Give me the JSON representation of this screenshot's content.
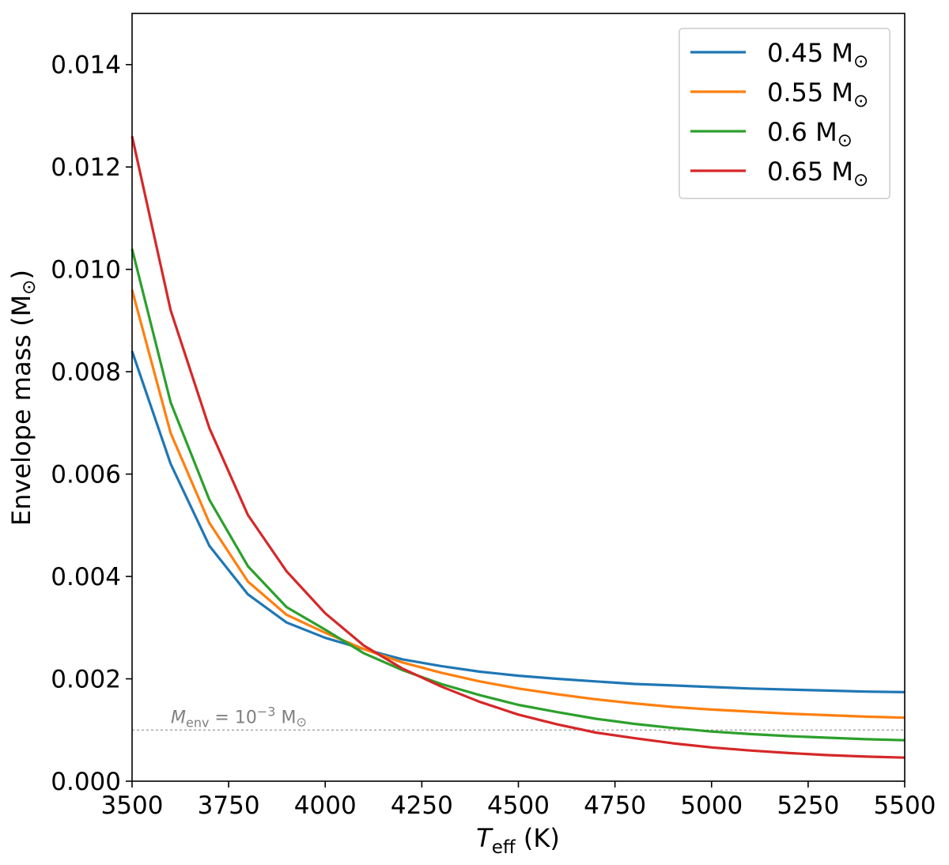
{
  "chart_data": {
    "type": "line",
    "xlabel": {
      "main": "T",
      "sub": "eff",
      "rest": " (K)"
    },
    "ylabel": {
      "main": "Envelope mass (M",
      "symbol": "⊙",
      "rest": ")"
    },
    "xlim": [
      3500,
      5500
    ],
    "ylim": [
      0.0,
      0.015
    ],
    "xticks": [
      3500,
      3750,
      4000,
      4250,
      4500,
      4750,
      5000,
      5250,
      5500
    ],
    "xtick_labels": [
      "3500",
      "3750",
      "4000",
      "4250",
      "4500",
      "4750",
      "5000",
      "5250",
      "5500"
    ],
    "yticks": [
      0.0,
      0.002,
      0.004,
      0.006,
      0.008,
      0.01,
      0.012,
      0.014
    ],
    "ytick_labels": [
      "0.000",
      "0.002",
      "0.004",
      "0.006",
      "0.008",
      "0.010",
      "0.012",
      "0.014"
    ],
    "grid": false,
    "legend_position": "top-right",
    "x": [
      3500,
      3600,
      3700,
      3800,
      3900,
      4000,
      4100,
      4200,
      4300,
      4400,
      4500,
      4600,
      4700,
      4800,
      4900,
      5000,
      5100,
      5200,
      5300,
      5400,
      5500
    ],
    "series": [
      {
        "name": "0.45 M",
        "name_symbol": "⊙",
        "color": "#1f77b4",
        "values": [
          0.0084,
          0.0062,
          0.0046,
          0.00365,
          0.0031,
          0.0028,
          0.00258,
          0.00238,
          0.00225,
          0.00214,
          0.00206,
          0.002,
          0.00195,
          0.0019,
          0.00187,
          0.00184,
          0.00181,
          0.00179,
          0.00177,
          0.00175,
          0.00174
        ]
      },
      {
        "name": "0.55 M",
        "name_symbol": "⊙",
        "color": "#ff7f0e",
        "values": [
          0.0096,
          0.0068,
          0.00505,
          0.0039,
          0.00325,
          0.0029,
          0.00258,
          0.00232,
          0.00212,
          0.00195,
          0.00181,
          0.0017,
          0.0016,
          0.00152,
          0.00145,
          0.0014,
          0.00136,
          0.00132,
          0.00129,
          0.00126,
          0.00124
        ]
      },
      {
        "name": "0.6 M",
        "name_symbol": "⊙",
        "color": "#2ca02c",
        "values": [
          0.0104,
          0.0074,
          0.0055,
          0.0042,
          0.0034,
          0.00296,
          0.0025,
          0.00217,
          0.0019,
          0.00168,
          0.00149,
          0.00135,
          0.00122,
          0.00112,
          0.00104,
          0.00097,
          0.00092,
          0.00088,
          0.00085,
          0.00082,
          0.0008
        ]
      },
      {
        "name": "0.65 M",
        "name_symbol": "⊙",
        "color": "#d62728",
        "values": [
          0.0126,
          0.0092,
          0.0069,
          0.0052,
          0.0041,
          0.00328,
          0.00265,
          0.0022,
          0.00185,
          0.00155,
          0.0013,
          0.00111,
          0.00095,
          0.00084,
          0.00074,
          0.00066,
          0.0006,
          0.00055,
          0.00051,
          0.00048,
          0.00046
        ]
      }
    ],
    "reference_line": {
      "y": 0.001,
      "color": "#808080",
      "style": "dashed",
      "label_main": "M",
      "label_sub": "env",
      "label_eq": " = 10",
      "label_exp": "−3",
      "label_unit": " M",
      "label_symbol": "⊙"
    }
  }
}
